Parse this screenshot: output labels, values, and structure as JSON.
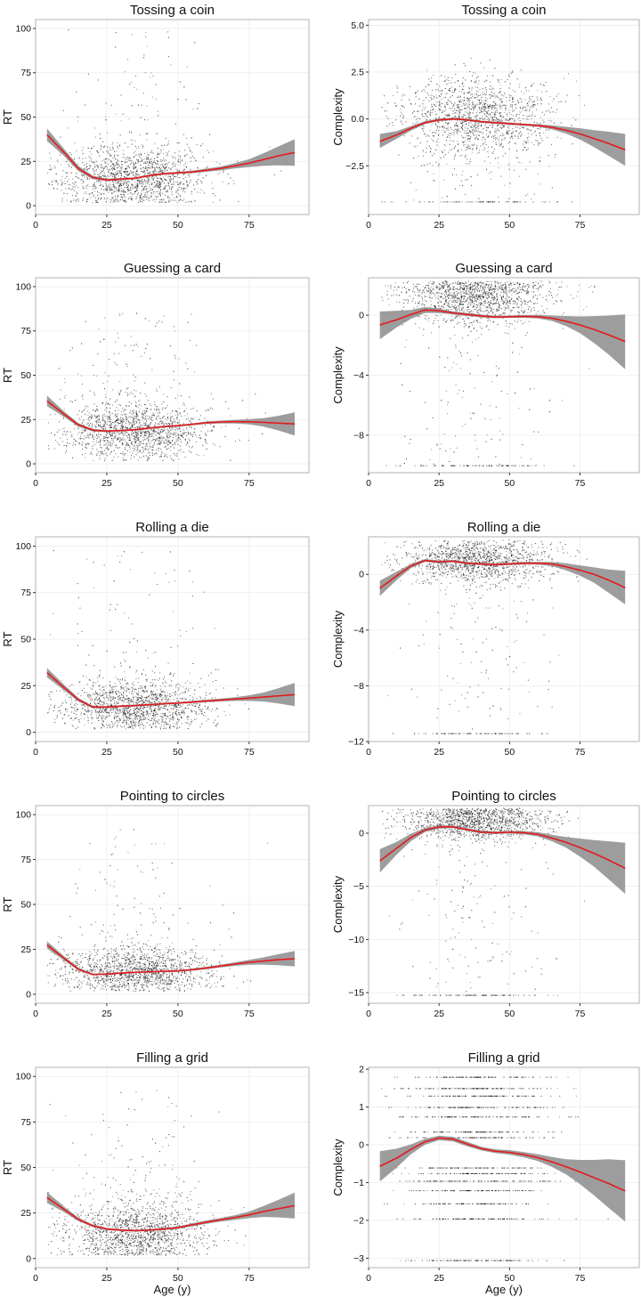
{
  "figure": {
    "xlabel": "Age (y)",
    "colors": {
      "points": "#000000",
      "smooth_line": "#e41a1c",
      "ci_band": "#8c8c8c",
      "panel_background": "#ffffff",
      "grid": "#ececec",
      "panel_border": "#b3b3b3"
    }
  },
  "chart_data": [
    {
      "type": "scatter",
      "title": "Tossing a coin",
      "xlabel": "",
      "ylabel": "RT",
      "xlim": [
        0,
        96
      ],
      "ylim": [
        -5,
        105
      ],
      "xticks": [
        0,
        25,
        50,
        75
      ],
      "yticks": [
        0,
        25,
        50,
        75,
        100
      ],
      "ytick_labels": [
        "0",
        "25",
        "50",
        "75",
        "100"
      ],
      "grid": true,
      "smooth": {
        "x": [
          4,
          10,
          15,
          20,
          25,
          30,
          35,
          40,
          45,
          50,
          55,
          60,
          65,
          70,
          75,
          80,
          85,
          91
        ],
        "y": [
          40,
          30,
          21,
          16,
          14.5,
          15,
          15.5,
          17,
          18,
          18.5,
          19,
          20,
          21,
          22.5,
          24,
          26,
          28,
          30
        ],
        "ci_lower": [
          36.5,
          28,
          19.5,
          15,
          13.8,
          14.4,
          15,
          16.4,
          17.4,
          17.9,
          18.3,
          19.1,
          19.9,
          21,
          21.8,
          22.5,
          22.8,
          22.5
        ],
        "ci_upper": [
          43.5,
          32,
          22.5,
          17,
          15.2,
          15.6,
          16,
          17.6,
          18.6,
          19.1,
          19.7,
          20.9,
          22.1,
          24,
          26.2,
          29.5,
          33.2,
          37.5
        ]
      },
      "points_summary": {
        "x_center": 35,
        "x_spread": 13,
        "y_center": 14,
        "y_spread": 8,
        "outlier_max": 100,
        "approx_n": 3000
      }
    },
    {
      "type": "scatter",
      "title": "Tossing a coin",
      "xlabel": "",
      "ylabel": "Complexity",
      "xlim": [
        0,
        96
      ],
      "ylim": [
        -5.1,
        5.3
      ],
      "xticks": [
        0,
        25,
        50,
        75
      ],
      "yticks": [
        -2.5,
        0,
        2.5,
        5
      ],
      "ytick_labels": [
        "−2.5",
        "0.0",
        "2.5",
        "5.0"
      ],
      "grid": true,
      "smooth": {
        "x": [
          4,
          10,
          15,
          20,
          25,
          30,
          35,
          40,
          45,
          50,
          55,
          60,
          65,
          70,
          75,
          80,
          85,
          91
        ],
        "y": [
          -1.2,
          -0.85,
          -0.5,
          -0.2,
          -0.05,
          0,
          -0.05,
          -0.15,
          -0.2,
          -0.25,
          -0.3,
          -0.35,
          -0.45,
          -0.6,
          -0.8,
          -1.05,
          -1.3,
          -1.65
        ],
        "ci_lower": [
          -1.55,
          -1.05,
          -0.62,
          -0.28,
          -0.12,
          -0.06,
          -0.11,
          -0.21,
          -0.26,
          -0.31,
          -0.36,
          -0.42,
          -0.56,
          -0.78,
          -1.1,
          -1.5,
          -1.95,
          -2.5
        ],
        "ci_upper": [
          -0.8,
          -0.65,
          -0.38,
          -0.12,
          0.02,
          0.06,
          0.01,
          -0.09,
          -0.14,
          -0.19,
          -0.24,
          -0.28,
          -0.34,
          -0.42,
          -0.5,
          -0.6,
          -0.68,
          -0.8
        ]
      },
      "points_summary": {
        "x_center": 38,
        "x_spread": 13,
        "y_center": 0.2,
        "y_spread": 1.0,
        "discrete_floor": -4.4,
        "approx_n": 3000
      }
    },
    {
      "type": "scatter",
      "title": "Guessing a card",
      "xlabel": "",
      "ylabel": "RT",
      "xlim": [
        0,
        96
      ],
      "ylim": [
        -5,
        105
      ],
      "xticks": [
        0,
        25,
        50,
        75
      ],
      "yticks": [
        0,
        25,
        50,
        75,
        100
      ],
      "ytick_labels": [
        "0",
        "25",
        "50",
        "75",
        "100"
      ],
      "grid": true,
      "smooth": {
        "x": [
          4,
          10,
          15,
          20,
          25,
          30,
          35,
          40,
          45,
          50,
          55,
          60,
          65,
          70,
          75,
          80,
          85,
          91
        ],
        "y": [
          35.5,
          28,
          22,
          19,
          18.5,
          18.8,
          19.2,
          20.2,
          21,
          21.5,
          22.3,
          23.2,
          23.6,
          23.8,
          23.7,
          23.4,
          23,
          22.5
        ],
        "ci_lower": [
          32.5,
          26.5,
          21,
          18.3,
          18,
          18.3,
          18.7,
          19.7,
          20.5,
          21,
          21.7,
          22.5,
          22.8,
          22.8,
          22.2,
          21,
          19,
          16
        ],
        "ci_upper": [
          38.5,
          29.5,
          23,
          19.7,
          19,
          19.3,
          19.7,
          20.7,
          21.5,
          22,
          22.9,
          23.9,
          24.4,
          24.8,
          25.2,
          25.8,
          27,
          29
        ]
      },
      "points_summary": {
        "x_center": 35,
        "x_spread": 13,
        "y_center": 17,
        "y_spread": 8,
        "outlier_max": 86,
        "approx_n": 3000
      }
    },
    {
      "type": "scatter",
      "title": "Guessing a card",
      "xlabel": "",
      "ylabel": "Complexity",
      "xlim": [
        0,
        96
      ],
      "ylim": [
        -10.5,
        2.5
      ],
      "xticks": [
        0,
        25,
        50,
        75
      ],
      "yticks": [
        -8,
        -4,
        0
      ],
      "ytick_labels": [
        "−8",
        "−4",
        "0"
      ],
      "grid": true,
      "smooth": {
        "x": [
          4,
          10,
          15,
          20,
          25,
          30,
          35,
          40,
          45,
          50,
          55,
          60,
          65,
          70,
          75,
          80,
          85,
          91
        ],
        "y": [
          -0.65,
          -0.3,
          0.05,
          0.35,
          0.3,
          0.15,
          0.05,
          -0.05,
          -0.12,
          -0.1,
          -0.08,
          -0.1,
          -0.2,
          -0.4,
          -0.65,
          -0.95,
          -1.3,
          -1.75
        ],
        "ci_lower": [
          -1.6,
          -0.8,
          -0.25,
          0.15,
          0.15,
          0.05,
          -0.05,
          -0.14,
          -0.2,
          -0.18,
          -0.17,
          -0.22,
          -0.38,
          -0.72,
          -1.2,
          -1.85,
          -2.6,
          -3.6
        ],
        "ci_upper": [
          0.25,
          0.3,
          0.35,
          0.55,
          0.45,
          0.25,
          0.15,
          0.04,
          -0.04,
          -0.02,
          0.01,
          0.02,
          -0.02,
          -0.05,
          -0.08,
          -0.06,
          -0.02,
          0.05
        ]
      },
      "points_summary": {
        "x_center": 38,
        "x_spread": 13,
        "y_center": 1.2,
        "y_spread": 0.9,
        "discrete_floor": -10,
        "approx_n": 3000
      }
    },
    {
      "type": "scatter",
      "title": "Rolling a die",
      "xlabel": "",
      "ylabel": "RT",
      "xlim": [
        0,
        96
      ],
      "ylim": [
        -5,
        105
      ],
      "xticks": [
        0,
        25,
        50,
        75
      ],
      "yticks": [
        0,
        25,
        50,
        75,
        100
      ],
      "ytick_labels": [
        "0",
        "25",
        "50",
        "75",
        "100"
      ],
      "grid": true,
      "smooth": {
        "x": [
          4,
          10,
          15,
          20,
          25,
          30,
          35,
          40,
          45,
          50,
          55,
          60,
          65,
          70,
          75,
          80,
          85,
          91
        ],
        "y": [
          32,
          24,
          17.5,
          13.5,
          13.5,
          14,
          14.3,
          14.8,
          15.3,
          15.7,
          16.2,
          16.8,
          17.3,
          17.8,
          18.3,
          18.9,
          19.5,
          20.2
        ],
        "ci_lower": [
          29.5,
          22.5,
          16.5,
          12.9,
          13,
          13.5,
          13.8,
          14.3,
          14.8,
          15.2,
          15.6,
          16.1,
          16.5,
          16.8,
          16.8,
          16.5,
          15.5,
          14
        ],
        "ci_upper": [
          34.5,
          25.5,
          18.5,
          14.1,
          14,
          14.5,
          14.8,
          15.3,
          15.8,
          16.2,
          16.8,
          17.5,
          18.1,
          18.8,
          19.8,
          21.3,
          23.5,
          26.5
        ]
      },
      "points_summary": {
        "x_center": 35,
        "x_spread": 13,
        "y_center": 12,
        "y_spread": 7,
        "outlier_max": 100,
        "approx_n": 3000
      }
    },
    {
      "type": "scatter",
      "title": "Rolling a die",
      "xlabel": "",
      "ylabel": "Complexity",
      "xlim": [
        0,
        96
      ],
      "ylim": [
        -12,
        2.7
      ],
      "xticks": [
        0,
        25,
        50,
        75
      ],
      "yticks": [
        -12,
        -8,
        -4,
        0
      ],
      "ytick_labels": [
        "−12",
        "−8",
        "−4",
        "0"
      ],
      "grid": true,
      "smooth": {
        "x": [
          4,
          10,
          15,
          20,
          25,
          30,
          35,
          40,
          45,
          50,
          55,
          60,
          65,
          70,
          75,
          80,
          85,
          91
        ],
        "y": [
          -1,
          -0.1,
          0.6,
          1.0,
          0.9,
          0.95,
          0.8,
          0.75,
          0.7,
          0.75,
          0.8,
          0.8,
          0.75,
          0.55,
          0.3,
          0,
          -0.4,
          -0.95
        ],
        "ci_lower": [
          -1.55,
          -0.4,
          0.45,
          0.9,
          0.8,
          0.86,
          0.72,
          0.67,
          0.62,
          0.67,
          0.71,
          0.7,
          0.6,
          0.3,
          -0.1,
          -0.6,
          -1.3,
          -2.15
        ],
        "ci_upper": [
          -0.45,
          0.2,
          0.75,
          1.1,
          1.0,
          1.04,
          0.88,
          0.83,
          0.78,
          0.83,
          0.89,
          0.9,
          0.9,
          0.8,
          0.65,
          0.5,
          0.35,
          0.25
        ]
      },
      "points_summary": {
        "x_center": 38,
        "x_spread": 13,
        "y_center": 1.0,
        "y_spread": 0.8,
        "discrete_floor": -11.4,
        "approx_n": 3000
      }
    },
    {
      "type": "scatter",
      "title": "Pointing to circles",
      "xlabel": "",
      "ylabel": "RT",
      "xlim": [
        0,
        96
      ],
      "ylim": [
        -5,
        105
      ],
      "xticks": [
        0,
        25,
        50,
        75
      ],
      "yticks": [
        0,
        25,
        50,
        75,
        100
      ],
      "ytick_labels": [
        "0",
        "25",
        "50",
        "75",
        "100"
      ],
      "grid": true,
      "smooth": {
        "x": [
          4,
          10,
          15,
          20,
          25,
          30,
          35,
          40,
          45,
          50,
          55,
          60,
          65,
          70,
          75,
          80,
          85,
          91
        ],
        "y": [
          27.5,
          20,
          14,
          11,
          11.2,
          11.8,
          12.2,
          12.5,
          12.8,
          13,
          13.7,
          14.6,
          15.7,
          16.8,
          17.8,
          18.5,
          19.2,
          19.8
        ],
        "ci_lower": [
          25.5,
          18.8,
          13.2,
          10.5,
          10.8,
          11.4,
          11.8,
          12.1,
          12.4,
          12.5,
          13.1,
          13.9,
          14.9,
          15.8,
          16.4,
          16.5,
          16.2,
          15.5
        ],
        "ci_upper": [
          29.5,
          21.2,
          14.8,
          11.5,
          11.6,
          12.2,
          12.6,
          12.9,
          13.2,
          13.5,
          14.3,
          15.3,
          16.5,
          17.8,
          19.2,
          20.5,
          22.2,
          24.1
        ]
      },
      "points_summary": {
        "x_center": 35,
        "x_spread": 13,
        "y_center": 11,
        "y_spread": 6,
        "outlier_max": 95,
        "approx_n": 3000
      }
    },
    {
      "type": "scatter",
      "title": "Pointing to circles",
      "xlabel": "",
      "ylabel": "Complexity",
      "xlim": [
        0,
        96
      ],
      "ylim": [
        -16,
        2.6
      ],
      "xticks": [
        0,
        25,
        50,
        75
      ],
      "yticks": [
        -15,
        -10,
        -5,
        0
      ],
      "ytick_labels": [
        "−15",
        "−10",
        "−5",
        "0"
      ],
      "grid": true,
      "smooth": {
        "x": [
          4,
          10,
          15,
          20,
          25,
          30,
          35,
          40,
          45,
          50,
          55,
          60,
          65,
          70,
          75,
          80,
          85,
          91
        ],
        "y": [
          -2.6,
          -1.4,
          -0.4,
          0.3,
          0.6,
          0.6,
          0.35,
          0.1,
          0.05,
          0.1,
          0.05,
          -0.1,
          -0.45,
          -0.85,
          -1.35,
          -1.9,
          -2.5,
          -3.3
        ],
        "ci_lower": [
          -3.7,
          -2.0,
          -0.75,
          0.1,
          0.45,
          0.47,
          0.22,
          -0.02,
          -0.07,
          -0.02,
          -0.1,
          -0.3,
          -0.75,
          -1.35,
          -2.2,
          -3.15,
          -4.3,
          -5.7
        ],
        "ci_upper": [
          -1.5,
          -0.8,
          -0.05,
          0.5,
          0.75,
          0.73,
          0.48,
          0.22,
          0.17,
          0.22,
          0.2,
          0.1,
          -0.15,
          -0.35,
          -0.5,
          -0.65,
          -0.75,
          -0.9
        ]
      },
      "points_summary": {
        "x_center": 38,
        "x_spread": 13,
        "y_center": 1.2,
        "y_spread": 0.9,
        "discrete_floor": -15.2,
        "approx_n": 3000
      }
    },
    {
      "type": "scatter",
      "title": "Filling a grid",
      "xlabel": "Age (y)",
      "ylabel": "RT",
      "xlim": [
        0,
        96
      ],
      "ylim": [
        -5,
        105
      ],
      "xticks": [
        0,
        25,
        50,
        75
      ],
      "yticks": [
        0,
        25,
        50,
        75,
        100
      ],
      "ytick_labels": [
        "0",
        "25",
        "50",
        "75",
        "100"
      ],
      "grid": true,
      "smooth": {
        "x": [
          4,
          10,
          15,
          20,
          25,
          30,
          35,
          40,
          45,
          50,
          55,
          60,
          65,
          70,
          75,
          80,
          85,
          91
        ],
        "y": [
          33.5,
          27,
          21.5,
          18,
          16.2,
          15.6,
          15.3,
          15.6,
          16.2,
          17,
          18.5,
          20,
          21.3,
          22.5,
          24,
          25.8,
          27.3,
          29
        ],
        "ci_lower": [
          30.5,
          25.5,
          20.5,
          17.3,
          15.6,
          15.1,
          14.8,
          15.1,
          15.6,
          16.3,
          17.7,
          19.1,
          20.3,
          21.2,
          22.2,
          22.8,
          22.6,
          22
        ],
        "ci_upper": [
          36.5,
          28.5,
          22.5,
          18.7,
          16.8,
          16.1,
          15.8,
          16.1,
          16.8,
          17.7,
          19.3,
          20.9,
          22.3,
          23.8,
          25.8,
          28.8,
          32,
          36.2
        ]
      },
      "points_summary": {
        "x_center": 35,
        "x_spread": 13,
        "y_center": 13,
        "y_spread": 8,
        "outlier_max": 94,
        "approx_n": 3000
      }
    },
    {
      "type": "scatter",
      "title": "Filling a grid",
      "xlabel": "Age (y)",
      "ylabel": "Complexity",
      "xlim": [
        0,
        96
      ],
      "ylim": [
        -3.25,
        2.05
      ],
      "xticks": [
        0,
        25,
        50,
        75
      ],
      "yticks": [
        -3,
        -2,
        -1,
        0,
        1,
        2
      ],
      "ytick_labels": [
        "−3",
        "−2",
        "−1",
        "0",
        "1",
        "2"
      ],
      "grid": true,
      "smooth": {
        "x": [
          4,
          10,
          15,
          20,
          25,
          30,
          35,
          40,
          45,
          50,
          55,
          60,
          65,
          70,
          75,
          80,
          85,
          91
        ],
        "y": [
          -0.57,
          -0.35,
          -0.12,
          0.08,
          0.18,
          0.15,
          0.02,
          -0.1,
          -0.17,
          -0.2,
          -0.26,
          -0.34,
          -0.45,
          -0.58,
          -0.72,
          -0.87,
          -1.02,
          -1.22
        ],
        "ci_lower": [
          -0.97,
          -0.6,
          -0.25,
          0,
          0.12,
          0.09,
          -0.04,
          -0.15,
          -0.22,
          -0.26,
          -0.33,
          -0.43,
          -0.58,
          -0.78,
          -1.04,
          -1.34,
          -1.66,
          -2.03
        ],
        "ci_upper": [
          -0.17,
          -0.1,
          0.01,
          0.16,
          0.24,
          0.21,
          0.08,
          -0.05,
          -0.12,
          -0.14,
          -0.19,
          -0.25,
          -0.32,
          -0.38,
          -0.4,
          -0.4,
          -0.38,
          -0.41
        ]
      },
      "points_summary": {
        "x_center": 38,
        "x_spread": 13,
        "discrete_levels": [
          1.8,
          1.5,
          1.3,
          1.0,
          0.75,
          0.35,
          0.2,
          -0.6,
          -0.75,
          -0.95,
          -1.2,
          -1.55,
          -1.95,
          -3.05
        ],
        "approx_n": 3000
      }
    }
  ]
}
